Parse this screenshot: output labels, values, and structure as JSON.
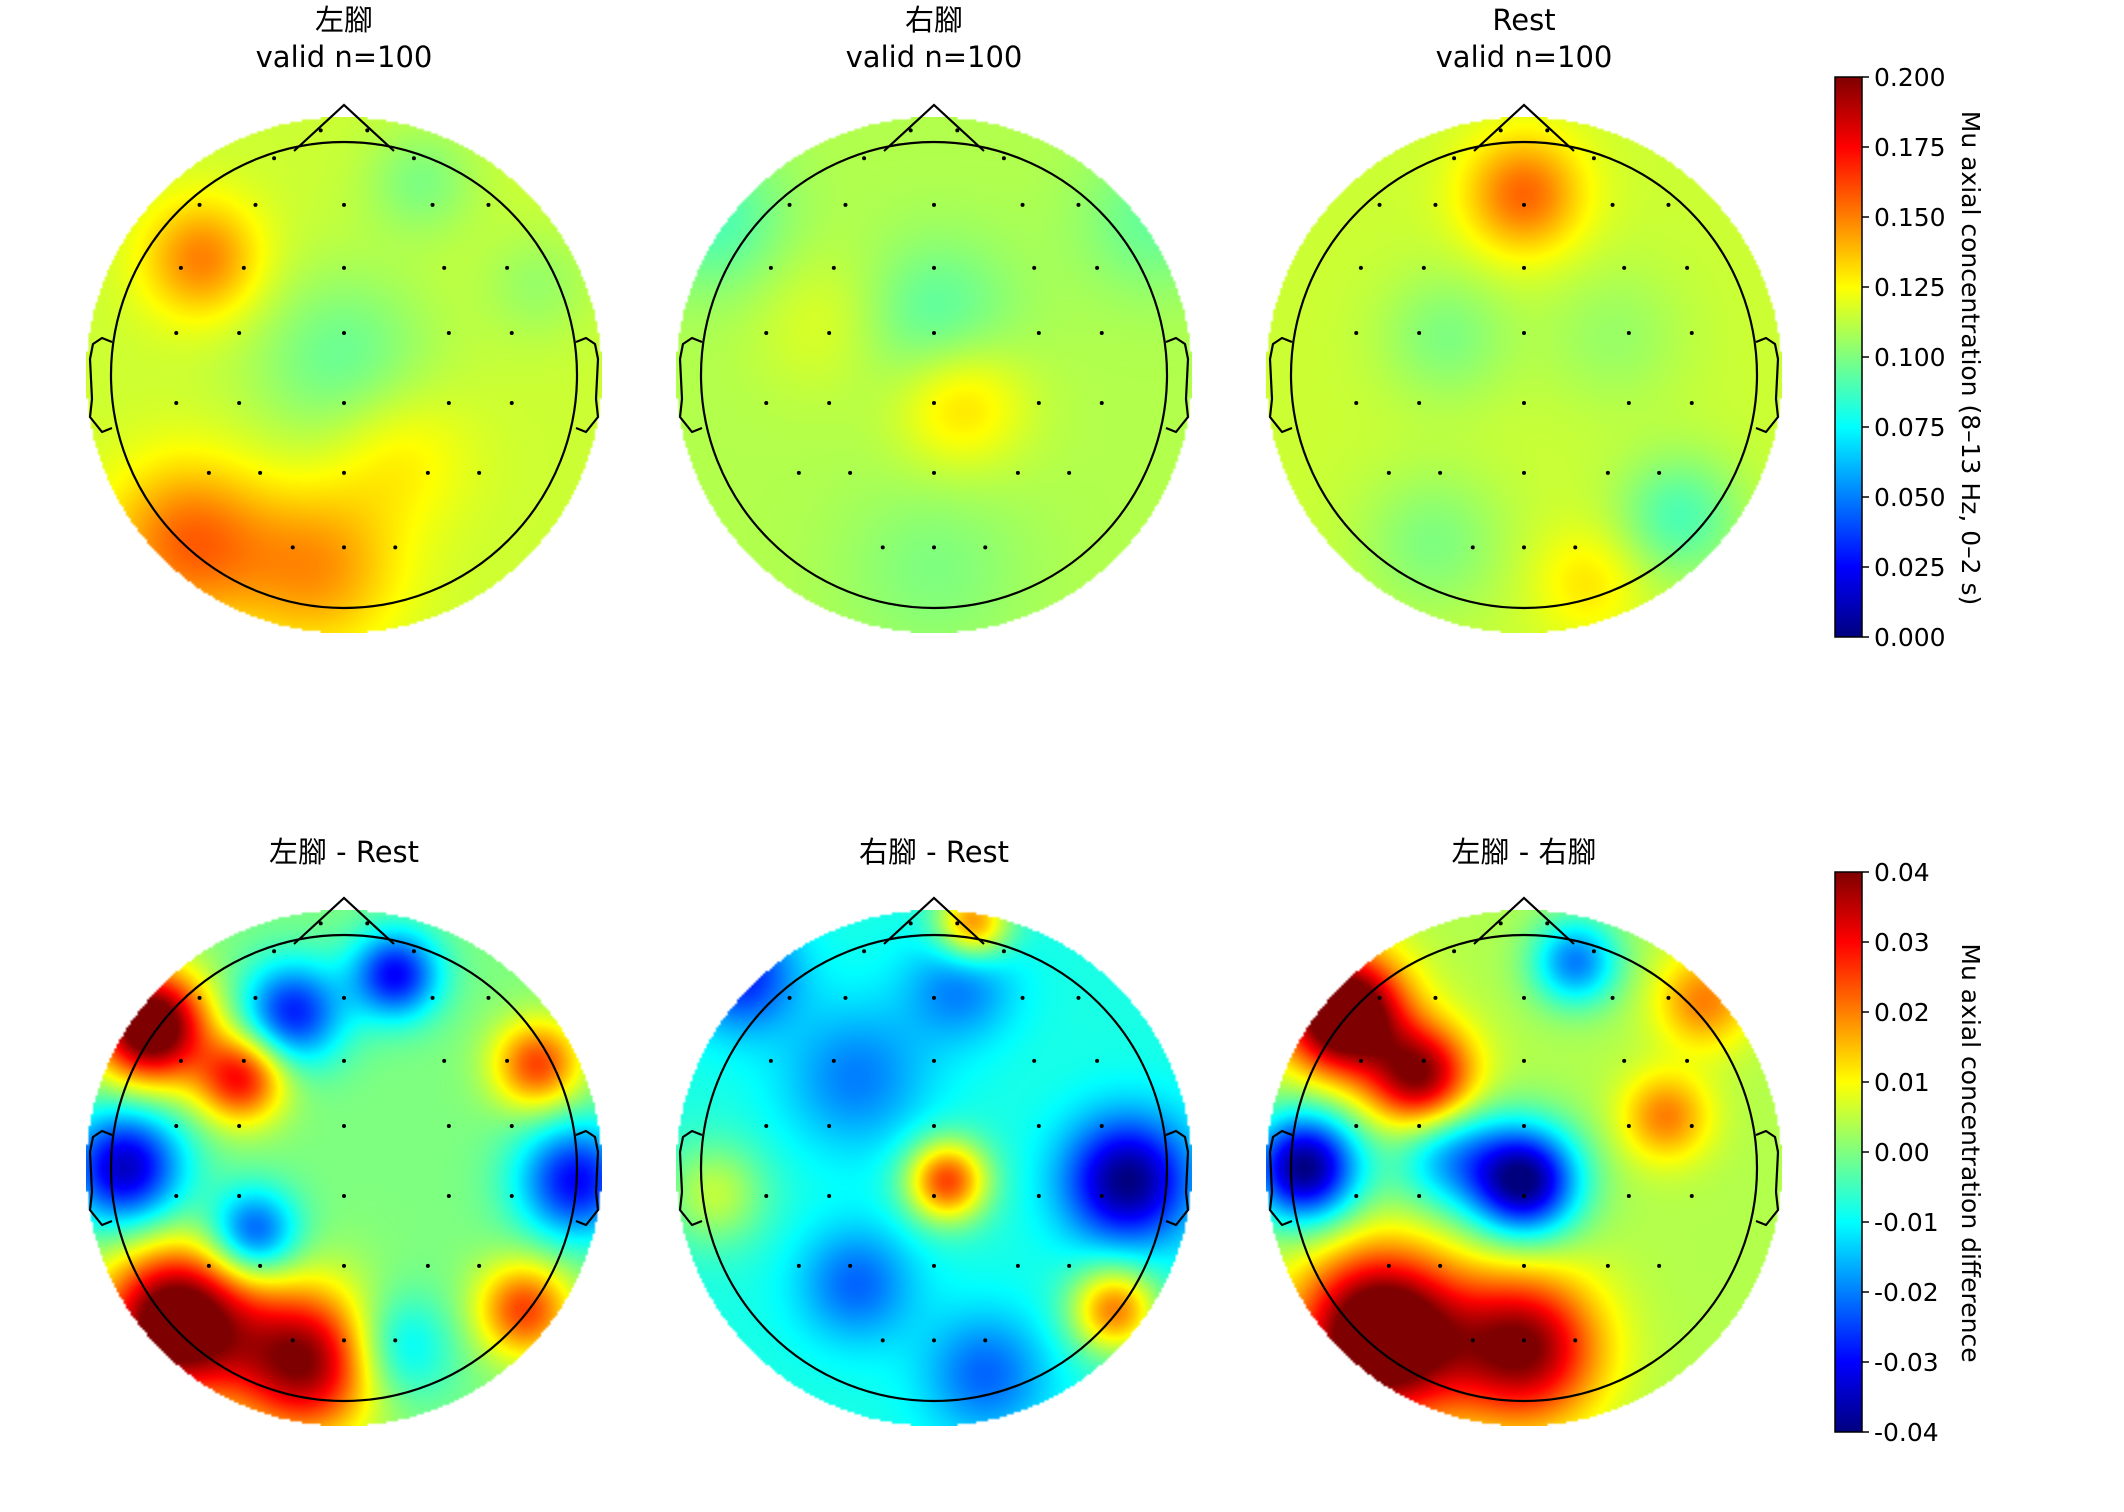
{
  "figure": {
    "row1_colorbar_label": "Mu axial concentration (8–13 Hz, 0–2 s)",
    "row2_colorbar_label": "Mu axial concentration difference"
  },
  "colormap": {
    "name": "jet",
    "stops": [
      "#00007f",
      "#0000ff",
      "#007fff",
      "#00ffff",
      "#7fff7f",
      "#ffff00",
      "#ff7f00",
      "#ff0000",
      "#7f0000"
    ]
  },
  "chart_data": [
    {
      "type": "heatmap",
      "subtype": "topomap",
      "title_line1": "左腳",
      "title_line2": "valid n=100",
      "vmin": 0.0,
      "vmax": 0.2,
      "base": 0.115,
      "blobs": [
        {
          "x": -0.55,
          "y": 0.45,
          "v": 0.15,
          "s": 0.16
        },
        {
          "x": -0.6,
          "y": -0.65,
          "v": 0.155,
          "s": 0.22
        },
        {
          "x": -0.1,
          "y": -0.75,
          "v": 0.145,
          "s": 0.22
        },
        {
          "x": 0.2,
          "y": -0.3,
          "v": 0.13,
          "s": 0.2
        },
        {
          "x": 0.0,
          "y": 0.05,
          "v": 0.095,
          "s": 0.25
        },
        {
          "x": 0.3,
          "y": 0.75,
          "v": 0.1,
          "s": 0.15
        },
        {
          "x": 0.75,
          "y": 0.35,
          "v": 0.105,
          "s": 0.15
        }
      ]
    },
    {
      "type": "heatmap",
      "subtype": "topomap",
      "title_line1": "右腳",
      "title_line2": "valid n=100",
      "vmin": 0.0,
      "vmax": 0.2,
      "base": 0.11,
      "blobs": [
        {
          "x": 0.0,
          "y": 0.2,
          "v": 0.09,
          "s": 0.22
        },
        {
          "x": 0.1,
          "y": -0.1,
          "v": 0.135,
          "s": 0.18
        },
        {
          "x": 0.0,
          "y": -0.75,
          "v": 0.1,
          "s": 0.25
        },
        {
          "x": -0.85,
          "y": 0.6,
          "v": 0.09,
          "s": 0.2
        },
        {
          "x": 0.85,
          "y": 0.6,
          "v": 0.095,
          "s": 0.2
        },
        {
          "x": -0.4,
          "y": 0.2,
          "v": 0.12,
          "s": 0.2
        }
      ]
    },
    {
      "type": "heatmap",
      "subtype": "topomap",
      "title_line1": "Rest",
      "title_line2": "valid n=100",
      "vmin": 0.0,
      "vmax": 0.2,
      "base": 0.115,
      "blobs": [
        {
          "x": 0.0,
          "y": 0.7,
          "v": 0.155,
          "s": 0.16
        },
        {
          "x": -0.3,
          "y": 0.15,
          "v": 0.1,
          "s": 0.18
        },
        {
          "x": 0.6,
          "y": -0.55,
          "v": 0.09,
          "s": 0.17
        },
        {
          "x": 0.25,
          "y": -0.8,
          "v": 0.13,
          "s": 0.15
        },
        {
          "x": -0.35,
          "y": -0.65,
          "v": 0.1,
          "s": 0.2
        },
        {
          "x": 0.35,
          "y": 0.15,
          "v": 0.105,
          "s": 0.2
        }
      ]
    },
    {
      "type": "heatmap",
      "subtype": "topomap",
      "title_line1": "左腳 - Rest",
      "title_line2": "",
      "vmin": -0.04,
      "vmax": 0.04,
      "base": 0.0,
      "blobs": [
        {
          "x": -0.75,
          "y": 0.55,
          "v": 0.05,
          "s": 0.15
        },
        {
          "x": -0.4,
          "y": 0.35,
          "v": 0.03,
          "s": 0.12
        },
        {
          "x": -0.2,
          "y": 0.6,
          "v": -0.028,
          "s": 0.14
        },
        {
          "x": 0.2,
          "y": 0.75,
          "v": -0.03,
          "s": 0.12
        },
        {
          "x": -0.85,
          "y": 0.0,
          "v": -0.035,
          "s": 0.16
        },
        {
          "x": 0.9,
          "y": -0.05,
          "v": -0.03,
          "s": 0.16
        },
        {
          "x": -0.65,
          "y": -0.6,
          "v": 0.05,
          "s": 0.2
        },
        {
          "x": -0.15,
          "y": -0.75,
          "v": 0.04,
          "s": 0.2
        },
        {
          "x": 0.75,
          "y": 0.4,
          "v": 0.025,
          "s": 0.12
        },
        {
          "x": 0.7,
          "y": -0.55,
          "v": 0.025,
          "s": 0.13
        },
        {
          "x": -0.35,
          "y": -0.25,
          "v": -0.025,
          "s": 0.12
        },
        {
          "x": 0.2,
          "y": -0.7,
          "v": -0.015,
          "s": 0.15
        }
      ]
    },
    {
      "type": "heatmap",
      "subtype": "topomap",
      "title_line1": "右腳 - Rest",
      "title_line2": "",
      "vmin": -0.04,
      "vmax": 0.04,
      "base": -0.008,
      "blobs": [
        {
          "x": -0.75,
          "y": 0.75,
          "v": -0.028,
          "s": 0.15
        },
        {
          "x": 0.1,
          "y": 0.7,
          "v": -0.02,
          "s": 0.15
        },
        {
          "x": -0.3,
          "y": 0.35,
          "v": -0.02,
          "s": 0.2
        },
        {
          "x": 0.05,
          "y": -0.05,
          "v": 0.025,
          "s": 0.11
        },
        {
          "x": 0.75,
          "y": -0.05,
          "v": -0.04,
          "s": 0.17
        },
        {
          "x": -0.3,
          "y": -0.45,
          "v": -0.022,
          "s": 0.16
        },
        {
          "x": 0.2,
          "y": -0.8,
          "v": -0.022,
          "s": 0.17
        },
        {
          "x": 0.7,
          "y": -0.55,
          "v": 0.02,
          "s": 0.12
        },
        {
          "x": -0.85,
          "y": -0.1,
          "v": 0.005,
          "s": 0.14
        },
        {
          "x": 0.15,
          "y": 0.95,
          "v": 0.02,
          "s": 0.1
        }
      ]
    },
    {
      "type": "heatmap",
      "subtype": "topomap",
      "title_line1": "左腳 - 右腳",
      "title_line2": "",
      "vmin": -0.04,
      "vmax": 0.04,
      "base": 0.004,
      "blobs": [
        {
          "x": -0.7,
          "y": 0.6,
          "v": 0.055,
          "s": 0.16
        },
        {
          "x": -0.4,
          "y": 0.35,
          "v": 0.04,
          "s": 0.14
        },
        {
          "x": -0.85,
          "y": 0.0,
          "v": -0.04,
          "s": 0.15
        },
        {
          "x": 0.0,
          "y": -0.05,
          "v": -0.04,
          "s": 0.15
        },
        {
          "x": -0.55,
          "y": -0.65,
          "v": 0.055,
          "s": 0.22
        },
        {
          "x": 0.0,
          "y": -0.7,
          "v": 0.04,
          "s": 0.2
        },
        {
          "x": 0.55,
          "y": 0.2,
          "v": 0.02,
          "s": 0.12
        },
        {
          "x": 0.7,
          "y": 0.65,
          "v": 0.02,
          "s": 0.13
        },
        {
          "x": 0.2,
          "y": 0.8,
          "v": -0.02,
          "s": 0.12
        },
        {
          "x": -0.3,
          "y": 0.05,
          "v": -0.015,
          "s": 0.15
        }
      ]
    }
  ],
  "colorbars": [
    {
      "label": "Mu axial concentration (8–13 Hz, 0–2 s)",
      "vmin": 0.0,
      "vmax": 0.2,
      "ticks": [
        "0.000",
        "0.025",
        "0.050",
        "0.075",
        "0.100",
        "0.125",
        "0.150",
        "0.175",
        "0.200"
      ]
    },
    {
      "label": "Mu axial concentration difference",
      "vmin": -0.04,
      "vmax": 0.04,
      "ticks": [
        "-0.04",
        "-0.03",
        "-0.02",
        "-0.01",
        "0.00",
        "0.01",
        "0.02",
        "0.03",
        "0.04"
      ]
    }
  ],
  "sensors": [
    [
      -0.1,
      1.05
    ],
    [
      0.1,
      1.05
    ],
    [
      -0.3,
      0.93
    ],
    [
      0.3,
      0.93
    ],
    [
      -0.62,
      0.73
    ],
    [
      -0.38,
      0.73
    ],
    [
      0.0,
      0.73
    ],
    [
      0.38,
      0.73
    ],
    [
      0.62,
      0.73
    ],
    [
      -0.7,
      0.46
    ],
    [
      -0.43,
      0.46
    ],
    [
      0.0,
      0.46
    ],
    [
      0.43,
      0.46
    ],
    [
      0.7,
      0.46
    ],
    [
      -0.72,
      0.18
    ],
    [
      -0.45,
      0.18
    ],
    [
      0.0,
      0.18
    ],
    [
      0.45,
      0.18
    ],
    [
      0.72,
      0.18
    ],
    [
      -0.72,
      -0.12
    ],
    [
      -0.45,
      -0.12
    ],
    [
      0.0,
      -0.12
    ],
    [
      0.45,
      -0.12
    ],
    [
      0.72,
      -0.12
    ],
    [
      -0.58,
      -0.42
    ],
    [
      -0.36,
      -0.42
    ],
    [
      0.0,
      -0.42
    ],
    [
      0.36,
      -0.42
    ],
    [
      0.58,
      -0.42
    ],
    [
      -0.22,
      -0.74
    ],
    [
      0.0,
      -0.74
    ],
    [
      0.22,
      -0.74
    ]
  ]
}
